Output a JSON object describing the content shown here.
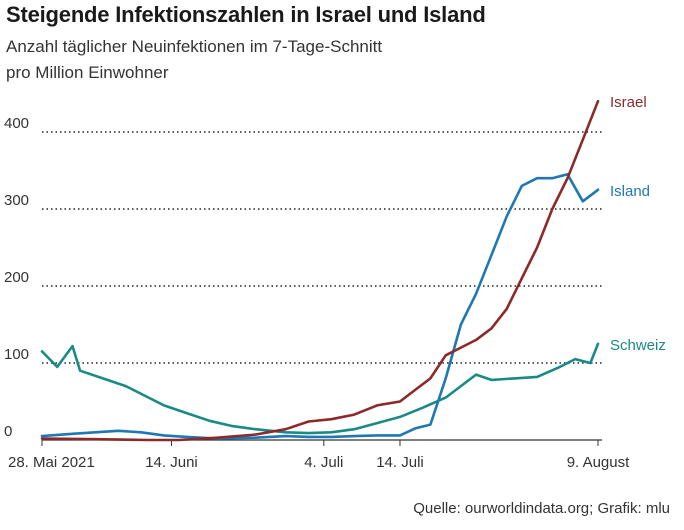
{
  "header": {
    "title": "Steigende Infektionszahlen in Israel und Island",
    "subtitle_line1": "Anzahl täglicher Neuinfektionen im 7-Tage-Schnitt",
    "subtitle_line2": "pro Million Einwohner"
  },
  "footer": {
    "source": "Quelle: ourworldindata.org; Grafik: mlu"
  },
  "chart_data": {
    "type": "line",
    "title": "Steigende Infektionszahlen in Israel und Island",
    "subtitle": "Anzahl täglicher Neuinfektionen im 7-Tage-Schnitt pro Million Einwohner",
    "xlabel": "",
    "ylabel": "",
    "x_range": [
      "2021-05-28",
      "2021-08-09"
    ],
    "ylim": [
      0,
      420
    ],
    "yticks": [
      0,
      100,
      200,
      300,
      400
    ],
    "ytick_labels": [
      "0",
      "100",
      "200",
      "300",
      "400"
    ],
    "xticks": [
      {
        "date": "2021-05-28",
        "label": "28. Mai 2021"
      },
      {
        "date": "2021-06-14",
        "label": "14. Juni"
      },
      {
        "date": "2021-07-04",
        "label": "4. Juli"
      },
      {
        "date": "2021-07-14",
        "label": "14. Juli"
      },
      {
        "date": "2021-08-09",
        "label": "9. August"
      }
    ],
    "grid": "horizontal dotted",
    "legend": "inline labels at line ends",
    "series": [
      {
        "name": "Israel",
        "color": "#8b2a2a",
        "points": [
          [
            "2021-05-28",
            2
          ],
          [
            "2021-06-04",
            1
          ],
          [
            "2021-06-11",
            0
          ],
          [
            "2021-06-15",
            0
          ],
          [
            "2021-06-20",
            3
          ],
          [
            "2021-06-25",
            7
          ],
          [
            "2021-06-29",
            14
          ],
          [
            "2021-07-02",
            24
          ],
          [
            "2021-07-05",
            27
          ],
          [
            "2021-07-08",
            33
          ],
          [
            "2021-07-11",
            45
          ],
          [
            "2021-07-14",
            50
          ],
          [
            "2021-07-16",
            65
          ],
          [
            "2021-07-18",
            80
          ],
          [
            "2021-07-20",
            110
          ],
          [
            "2021-07-22",
            120
          ],
          [
            "2021-07-24",
            130
          ],
          [
            "2021-07-26",
            145
          ],
          [
            "2021-07-28",
            170
          ],
          [
            "2021-07-30",
            210
          ],
          [
            "2021-08-01",
            250
          ],
          [
            "2021-08-03",
            300
          ],
          [
            "2021-08-05",
            340
          ],
          [
            "2021-08-07",
            390
          ],
          [
            "2021-08-09",
            440
          ]
        ]
      },
      {
        "name": "Island",
        "color": "#1f77b4",
        "points": [
          [
            "2021-05-28",
            5
          ],
          [
            "2021-06-01",
            8
          ],
          [
            "2021-06-04",
            10
          ],
          [
            "2021-06-07",
            12
          ],
          [
            "2021-06-10",
            10
          ],
          [
            "2021-06-13",
            6
          ],
          [
            "2021-06-16",
            4
          ],
          [
            "2021-06-20",
            2
          ],
          [
            "2021-06-25",
            3
          ],
          [
            "2021-06-29",
            5
          ],
          [
            "2021-07-02",
            4
          ],
          [
            "2021-07-05",
            4
          ],
          [
            "2021-07-08",
            5
          ],
          [
            "2021-07-11",
            6
          ],
          [
            "2021-07-14",
            6
          ],
          [
            "2021-07-16",
            15
          ],
          [
            "2021-07-18",
            20
          ],
          [
            "2021-07-20",
            80
          ],
          [
            "2021-07-22",
            150
          ],
          [
            "2021-07-24",
            190
          ],
          [
            "2021-07-26",
            240
          ],
          [
            "2021-07-28",
            290
          ],
          [
            "2021-07-30",
            330
          ],
          [
            "2021-08-01",
            340
          ],
          [
            "2021-08-03",
            340
          ],
          [
            "2021-08-05",
            345
          ],
          [
            "2021-08-07",
            310
          ],
          [
            "2021-08-09",
            325
          ]
        ]
      },
      {
        "name": "Schweiz",
        "color": "#1a8a86",
        "points": [
          [
            "2021-05-28",
            115
          ],
          [
            "2021-05-30",
            95
          ],
          [
            "2021-06-01",
            122
          ],
          [
            "2021-06-02",
            90
          ],
          [
            "2021-06-05",
            80
          ],
          [
            "2021-06-08",
            70
          ],
          [
            "2021-06-11",
            55
          ],
          [
            "2021-06-13",
            45
          ],
          [
            "2021-06-16",
            35
          ],
          [
            "2021-06-19",
            25
          ],
          [
            "2021-06-22",
            18
          ],
          [
            "2021-06-25",
            14
          ],
          [
            "2021-06-29",
            10
          ],
          [
            "2021-07-02",
            9
          ],
          [
            "2021-07-05",
            10
          ],
          [
            "2021-07-08",
            14
          ],
          [
            "2021-07-11",
            22
          ],
          [
            "2021-07-14",
            30
          ],
          [
            "2021-07-17",
            42
          ],
          [
            "2021-07-20",
            55
          ],
          [
            "2021-07-22",
            70
          ],
          [
            "2021-07-24",
            85
          ],
          [
            "2021-07-26",
            78
          ],
          [
            "2021-07-29",
            80
          ],
          [
            "2021-08-01",
            82
          ],
          [
            "2021-08-04",
            95
          ],
          [
            "2021-08-06",
            105
          ],
          [
            "2021-08-08",
            100
          ],
          [
            "2021-08-09",
            125
          ]
        ]
      }
    ]
  }
}
